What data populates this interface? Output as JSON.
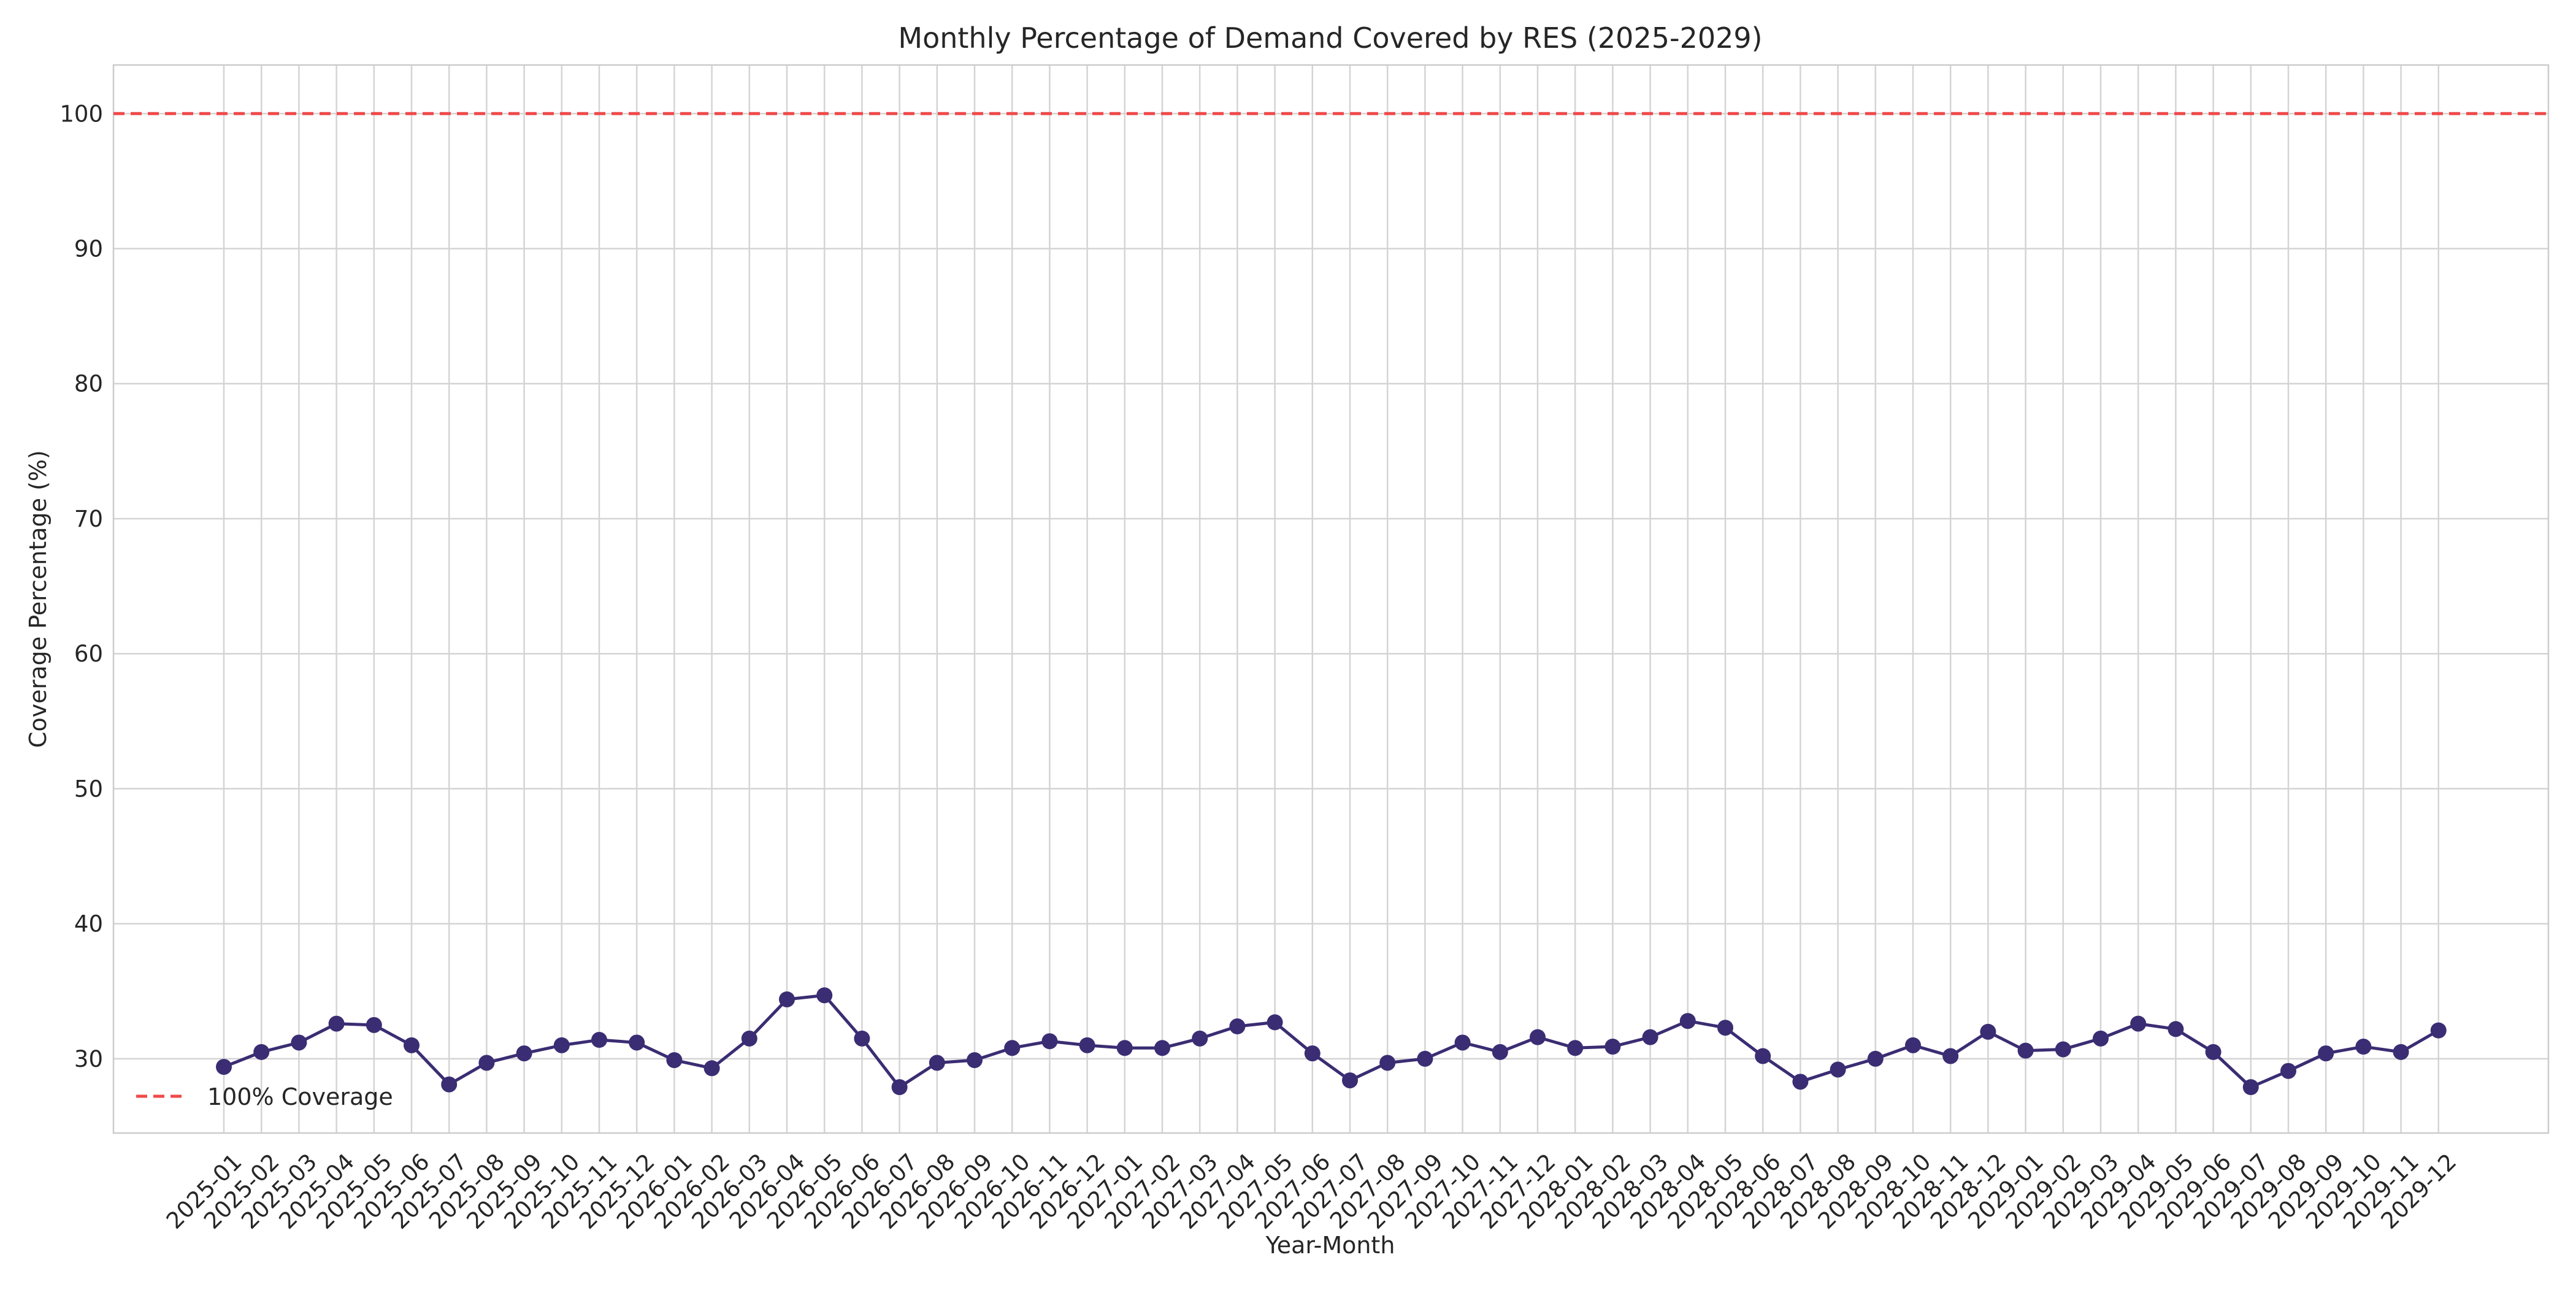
{
  "chart_data": {
    "type": "line",
    "title": "Monthly Percentage of Demand Covered by RES (2025-2029)",
    "xlabel": "Year-Month",
    "ylabel": "Coverage Percentage (%)",
    "ylim": [
      24.5,
      103.6
    ],
    "yticks": [
      30,
      40,
      50,
      60,
      70,
      80,
      90,
      100
    ],
    "grid": true,
    "legend_position": "lower-left",
    "categories": [
      "2025-01",
      "2025-02",
      "2025-03",
      "2025-04",
      "2025-05",
      "2025-06",
      "2025-07",
      "2025-08",
      "2025-09",
      "2025-10",
      "2025-11",
      "2025-12",
      "2026-01",
      "2026-02",
      "2026-03",
      "2026-04",
      "2026-05",
      "2026-06",
      "2026-07",
      "2026-08",
      "2026-09",
      "2026-10",
      "2026-11",
      "2026-12",
      "2027-01",
      "2027-02",
      "2027-03",
      "2027-04",
      "2027-05",
      "2027-06",
      "2027-07",
      "2027-08",
      "2027-09",
      "2027-10",
      "2027-11",
      "2027-12",
      "2028-01",
      "2028-02",
      "2028-03",
      "2028-04",
      "2028-05",
      "2028-06",
      "2028-07",
      "2028-08",
      "2028-09",
      "2028-10",
      "2028-11",
      "2028-12",
      "2029-01",
      "2029-02",
      "2029-03",
      "2029-04",
      "2029-05",
      "2029-06",
      "2029-07",
      "2029-08",
      "2029-09",
      "2029-10",
      "2029-11",
      "2029-12"
    ],
    "series": [
      {
        "color": "#3b2d73",
        "values": [
          29.4,
          30.5,
          31.2,
          32.6,
          32.5,
          31.0,
          28.1,
          29.7,
          30.4,
          31.0,
          31.4,
          31.2,
          29.9,
          29.3,
          31.5,
          34.4,
          34.7,
          31.5,
          27.9,
          29.7,
          29.9,
          30.8,
          31.3,
          31.0,
          30.8,
          30.8,
          31.5,
          32.4,
          32.7,
          30.4,
          28.4,
          29.7,
          30.0,
          31.2,
          30.5,
          31.6,
          30.8,
          30.9,
          31.6,
          32.8,
          32.3,
          30.2,
          28.3,
          29.2,
          30.0,
          31.0,
          30.2,
          32.0,
          30.6,
          30.7,
          31.5,
          32.6,
          32.2,
          30.5,
          27.9,
          29.1,
          30.4,
          30.9,
          30.5,
          32.1
        ]
      }
    ],
    "reference_line": {
      "value": 100,
      "label": "100% Coverage",
      "color": "#f04a4a",
      "style": "dashed"
    }
  }
}
